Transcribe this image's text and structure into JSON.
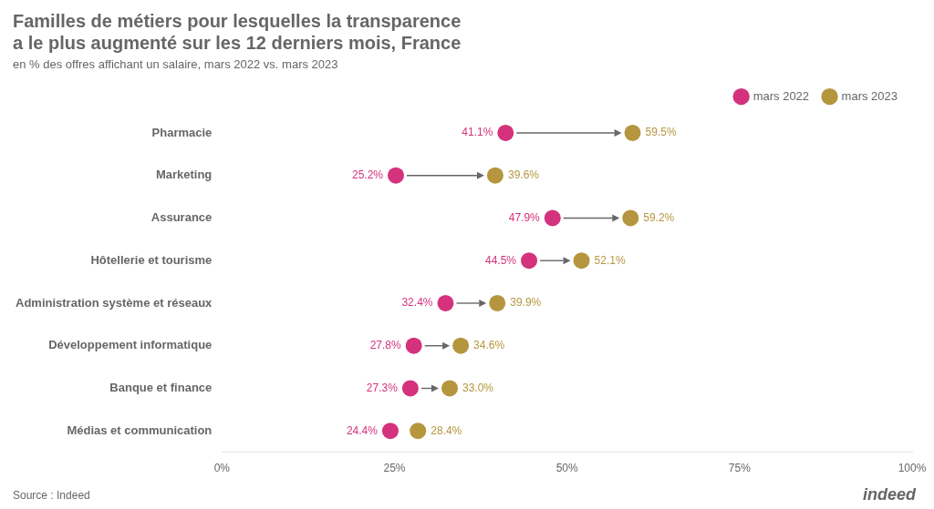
{
  "chart_data": {
    "type": "dumbbell",
    "orientation": "horizontal",
    "title": "Familles de métiers pour lesquelles la transparence\na le plus augmenté sur les 12 derniers mois, France",
    "subtitle": "en % des offres affichant un salaire, mars 2022 vs. mars 2023",
    "source": "Source : Indeed",
    "annotations": [
      "indeed"
    ],
    "categories": [
      "Pharmacie",
      "Marketing",
      "Assurance",
      "Hôtellerie et tourisme",
      "Administration système et réseaux",
      "Développement informatique",
      "Banque et finance",
      "Médias et communication"
    ],
    "series": [
      {
        "name": "mars 2022",
        "color": "#d4327c",
        "marker": "circle",
        "values": [
          41.1,
          25.2,
          47.9,
          44.5,
          32.4,
          27.8,
          27.3,
          24.4
        ],
        "value_labels": [
          "41.1%",
          "25.2%",
          "47.9%",
          "44.5%",
          "32.4%",
          "27.8%",
          "27.3%",
          "24.4%"
        ]
      },
      {
        "name": "mars 2023",
        "color": "#b5963e",
        "marker": "circle",
        "values": [
          59.5,
          39.6,
          59.2,
          52.1,
          39.9,
          34.6,
          33.0,
          28.4
        ],
        "value_labels": [
          "59.5%",
          "39.6%",
          "59.2%",
          "52.1%",
          "39.9%",
          "34.6%",
          "33.0%",
          "28.4%"
        ]
      }
    ],
    "xlim": [
      0,
      100
    ],
    "xticks": [
      {
        "value": 0,
        "label": "0%"
      },
      {
        "value": 25,
        "label": "25%"
      },
      {
        "value": 50,
        "label": "50%"
      },
      {
        "value": 75,
        "label": "75%"
      },
      {
        "value": 100,
        "label": "100%"
      }
    ],
    "grid": false,
    "legend": "upper right",
    "data_labels": true
  }
}
